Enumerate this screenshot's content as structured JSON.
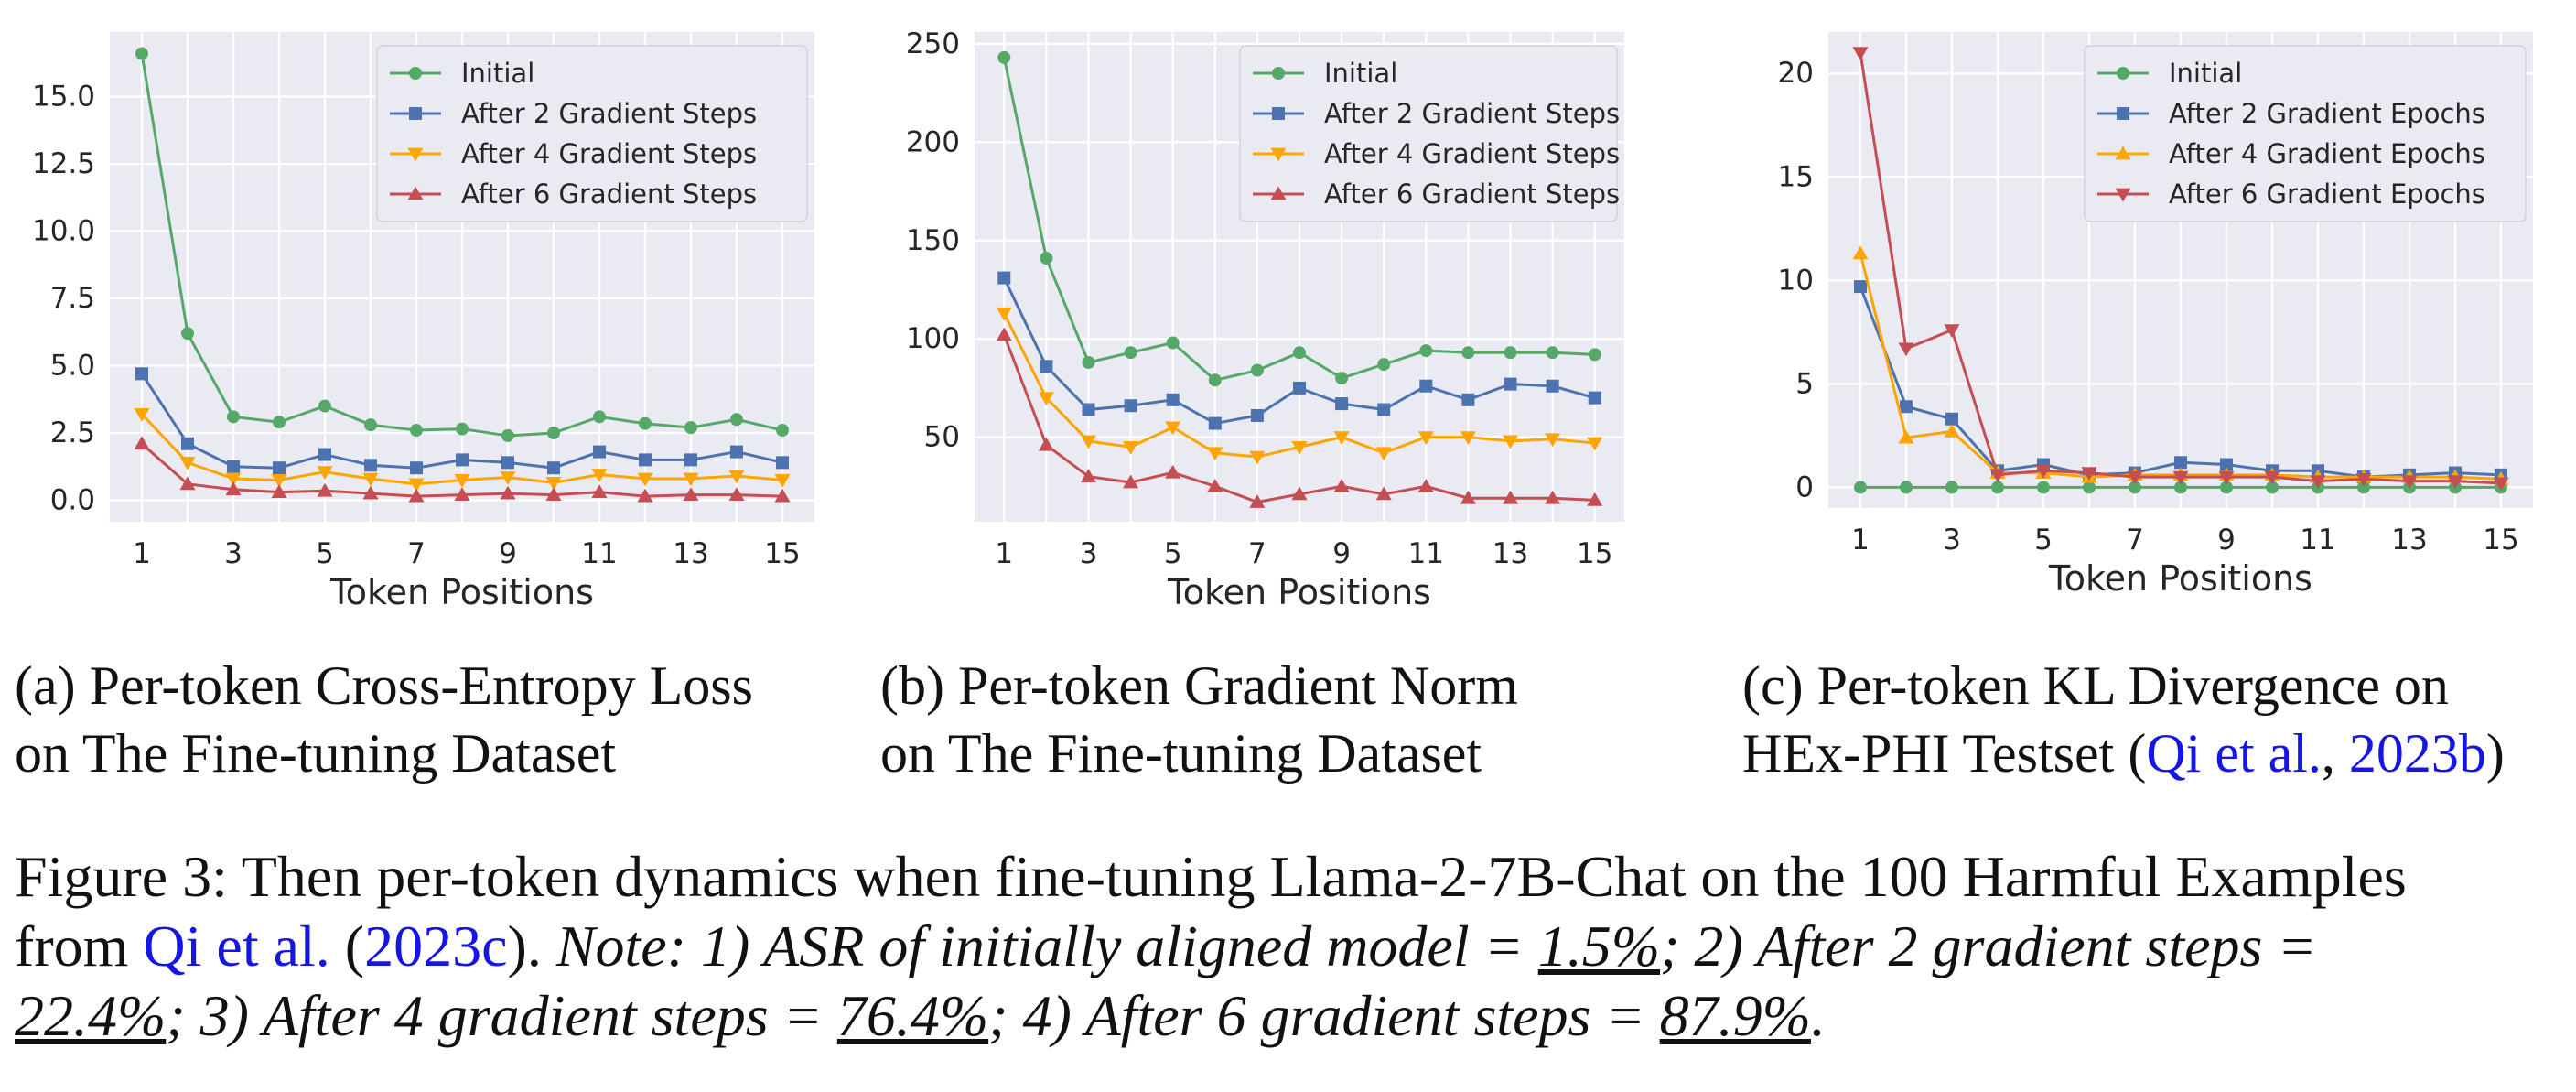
{
  "style": {
    "plot_bg": "#eaeaf2",
    "grid": "#ffffff",
    "link": "#1515e6"
  },
  "chart_data": [
    {
      "type": "line",
      "title": "",
      "xlabel": "Token Positions",
      "ylabel": "",
      "x": [
        1,
        2,
        3,
        4,
        5,
        6,
        7,
        8,
        9,
        10,
        11,
        12,
        13,
        14,
        15
      ],
      "xticks": [
        1,
        3,
        5,
        7,
        9,
        11,
        13,
        15
      ],
      "yticks": [
        0.0,
        2.5,
        5.0,
        7.5,
        10.0,
        12.5,
        15.0
      ],
      "ytick_labels": [
        "0.0",
        "2.5",
        "5.0",
        "7.5",
        "10.0",
        "12.5",
        "15.0"
      ],
      "ylim": [
        -0.8,
        17.4
      ],
      "grid": true,
      "legend_position": "top-right",
      "series": [
        {
          "name": "Initial",
          "color": "#55a868",
          "marker": "circle",
          "values": [
            16.6,
            6.2,
            3.1,
            2.9,
            3.5,
            2.8,
            2.6,
            2.65,
            2.4,
            2.5,
            3.1,
            2.85,
            2.7,
            3.0,
            2.6
          ]
        },
        {
          "name": "After 2 Gradient Steps",
          "color": "#4c72b0",
          "marker": "square",
          "values": [
            4.7,
            2.1,
            1.25,
            1.2,
            1.7,
            1.3,
            1.2,
            1.5,
            1.4,
            1.2,
            1.8,
            1.5,
            1.5,
            1.8,
            1.4
          ]
        },
        {
          "name": "After 4 Gradient Steps",
          "color": "#ffa500",
          "marker": "triangle-down",
          "values": [
            3.2,
            1.4,
            0.8,
            0.75,
            1.05,
            0.8,
            0.6,
            0.75,
            0.85,
            0.65,
            0.95,
            0.8,
            0.8,
            0.9,
            0.75
          ]
        },
        {
          "name": "After 6 Gradient Steps",
          "color": "#c44e52",
          "marker": "triangle-up",
          "values": [
            2.1,
            0.6,
            0.4,
            0.3,
            0.35,
            0.25,
            0.15,
            0.2,
            0.25,
            0.2,
            0.3,
            0.15,
            0.2,
            0.2,
            0.15
          ]
        }
      ]
    },
    {
      "type": "line",
      "title": "",
      "xlabel": "Token Positions",
      "ylabel": "",
      "x": [
        1,
        2,
        3,
        4,
        5,
        6,
        7,
        8,
        9,
        10,
        11,
        12,
        13,
        14,
        15
      ],
      "xticks": [
        1,
        3,
        5,
        7,
        9,
        11,
        13,
        15
      ],
      "yticks": [
        50,
        100,
        150,
        200,
        250
      ],
      "ytick_labels": [
        "50",
        "100",
        "150",
        "200",
        "250"
      ],
      "ylim": [
        7,
        256
      ],
      "grid": true,
      "legend_position": "top-right",
      "series": [
        {
          "name": "Initial",
          "color": "#55a868",
          "marker": "circle",
          "values": [
            243,
            141,
            88,
            93,
            98,
            79,
            84,
            93,
            80,
            87,
            94,
            93,
            93,
            93,
            92
          ]
        },
        {
          "name": "After 2 Gradient Steps",
          "color": "#4c72b0",
          "marker": "square",
          "values": [
            131,
            86,
            64,
            66,
            69,
            57,
            61,
            75,
            67,
            64,
            76,
            69,
            77,
            76,
            70
          ]
        },
        {
          "name": "After 4 Gradient Steps",
          "color": "#ffa500",
          "marker": "triangle-down",
          "values": [
            113,
            70,
            48,
            45,
            55,
            42,
            40,
            45,
            50,
            42,
            50,
            50,
            48,
            49,
            47
          ]
        },
        {
          "name": "After 6 Gradient Steps",
          "color": "#c44e52",
          "marker": "triangle-up",
          "values": [
            102,
            46,
            30,
            27,
            32,
            25,
            17,
            21,
            25,
            21,
            25,
            19,
            19,
            19,
            18
          ]
        }
      ]
    },
    {
      "type": "line",
      "title": "",
      "xlabel": "Token Positions",
      "ylabel": "",
      "x": [
        1,
        2,
        3,
        4,
        5,
        6,
        7,
        8,
        9,
        10,
        11,
        12,
        13,
        14,
        15
      ],
      "xticks": [
        1,
        3,
        5,
        7,
        9,
        11,
        13,
        15
      ],
      "yticks": [
        0,
        5,
        10,
        15,
        20
      ],
      "ytick_labels": [
        "0",
        "5",
        "10",
        "15",
        "20"
      ],
      "ylim": [
        -1.0,
        22.0
      ],
      "grid": true,
      "legend_position": "top-right",
      "series": [
        {
          "name": "Initial",
          "color": "#55a868",
          "marker": "circle",
          "values": [
            0,
            0,
            0,
            0,
            0,
            0,
            0,
            0,
            0,
            0,
            0,
            0,
            0,
            0,
            0
          ]
        },
        {
          "name": "After 2 Gradient Epochs",
          "color": "#4c72b0",
          "marker": "square",
          "values": [
            9.7,
            3.9,
            3.3,
            0.8,
            1.1,
            0.6,
            0.7,
            1.2,
            1.1,
            0.8,
            0.8,
            0.5,
            0.6,
            0.7,
            0.6
          ]
        },
        {
          "name": "After 4 Gradient Epochs",
          "color": "#ffa500",
          "marker": "triangle-up",
          "values": [
            11.3,
            2.4,
            2.7,
            0.7,
            0.7,
            0.5,
            0.6,
            0.6,
            0.6,
            0.6,
            0.5,
            0.5,
            0.5,
            0.5,
            0.4
          ]
        },
        {
          "name": "After 6 Gradient Epochs",
          "color": "#c44e52",
          "marker": "triangle-down",
          "values": [
            21.0,
            6.7,
            7.6,
            0.6,
            0.8,
            0.7,
            0.5,
            0.5,
            0.5,
            0.5,
            0.3,
            0.4,
            0.3,
            0.3,
            0.2
          ]
        }
      ]
    }
  ],
  "captions": {
    "a": {
      "line1": "(a) Per-token Cross-Entropy Loss",
      "line2": "on The Fine-tuning Dataset"
    },
    "b": {
      "line1": "(b) Per-token Gradient Norm",
      "line2": "on The Fine-tuning Dataset"
    },
    "c": {
      "line1": "(c) Per-token KL Divergence on",
      "line2_pre": "HEx-PHI Testset (",
      "cite_author": "Qi et al.",
      "comma": ", ",
      "cite_year": "2023b",
      "close": ")"
    }
  },
  "figure_caption": {
    "l1": "Figure 3: Then per-token dynamics when fine-tuning Llama-2-7B-Chat on the 100 Harmful Examples",
    "l2_from": "from ",
    "l2_author": "Qi et al.",
    "l2_open": " (",
    "l2_year": "2023c",
    "l2_close": "). ",
    "l2_note": "Note: 1) ASR of initially aligned model = ",
    "v1": "1.5%",
    "l2_after": "; 2) After 2 gradient steps =",
    "v2": "22.4%",
    "l3_mid": "; 3) After 4 gradient steps = ",
    "v3": "76.4%",
    "l3_mid2": "; 4) After 6 gradient steps = ",
    "v4": "87.9%",
    "l3_end": "."
  }
}
